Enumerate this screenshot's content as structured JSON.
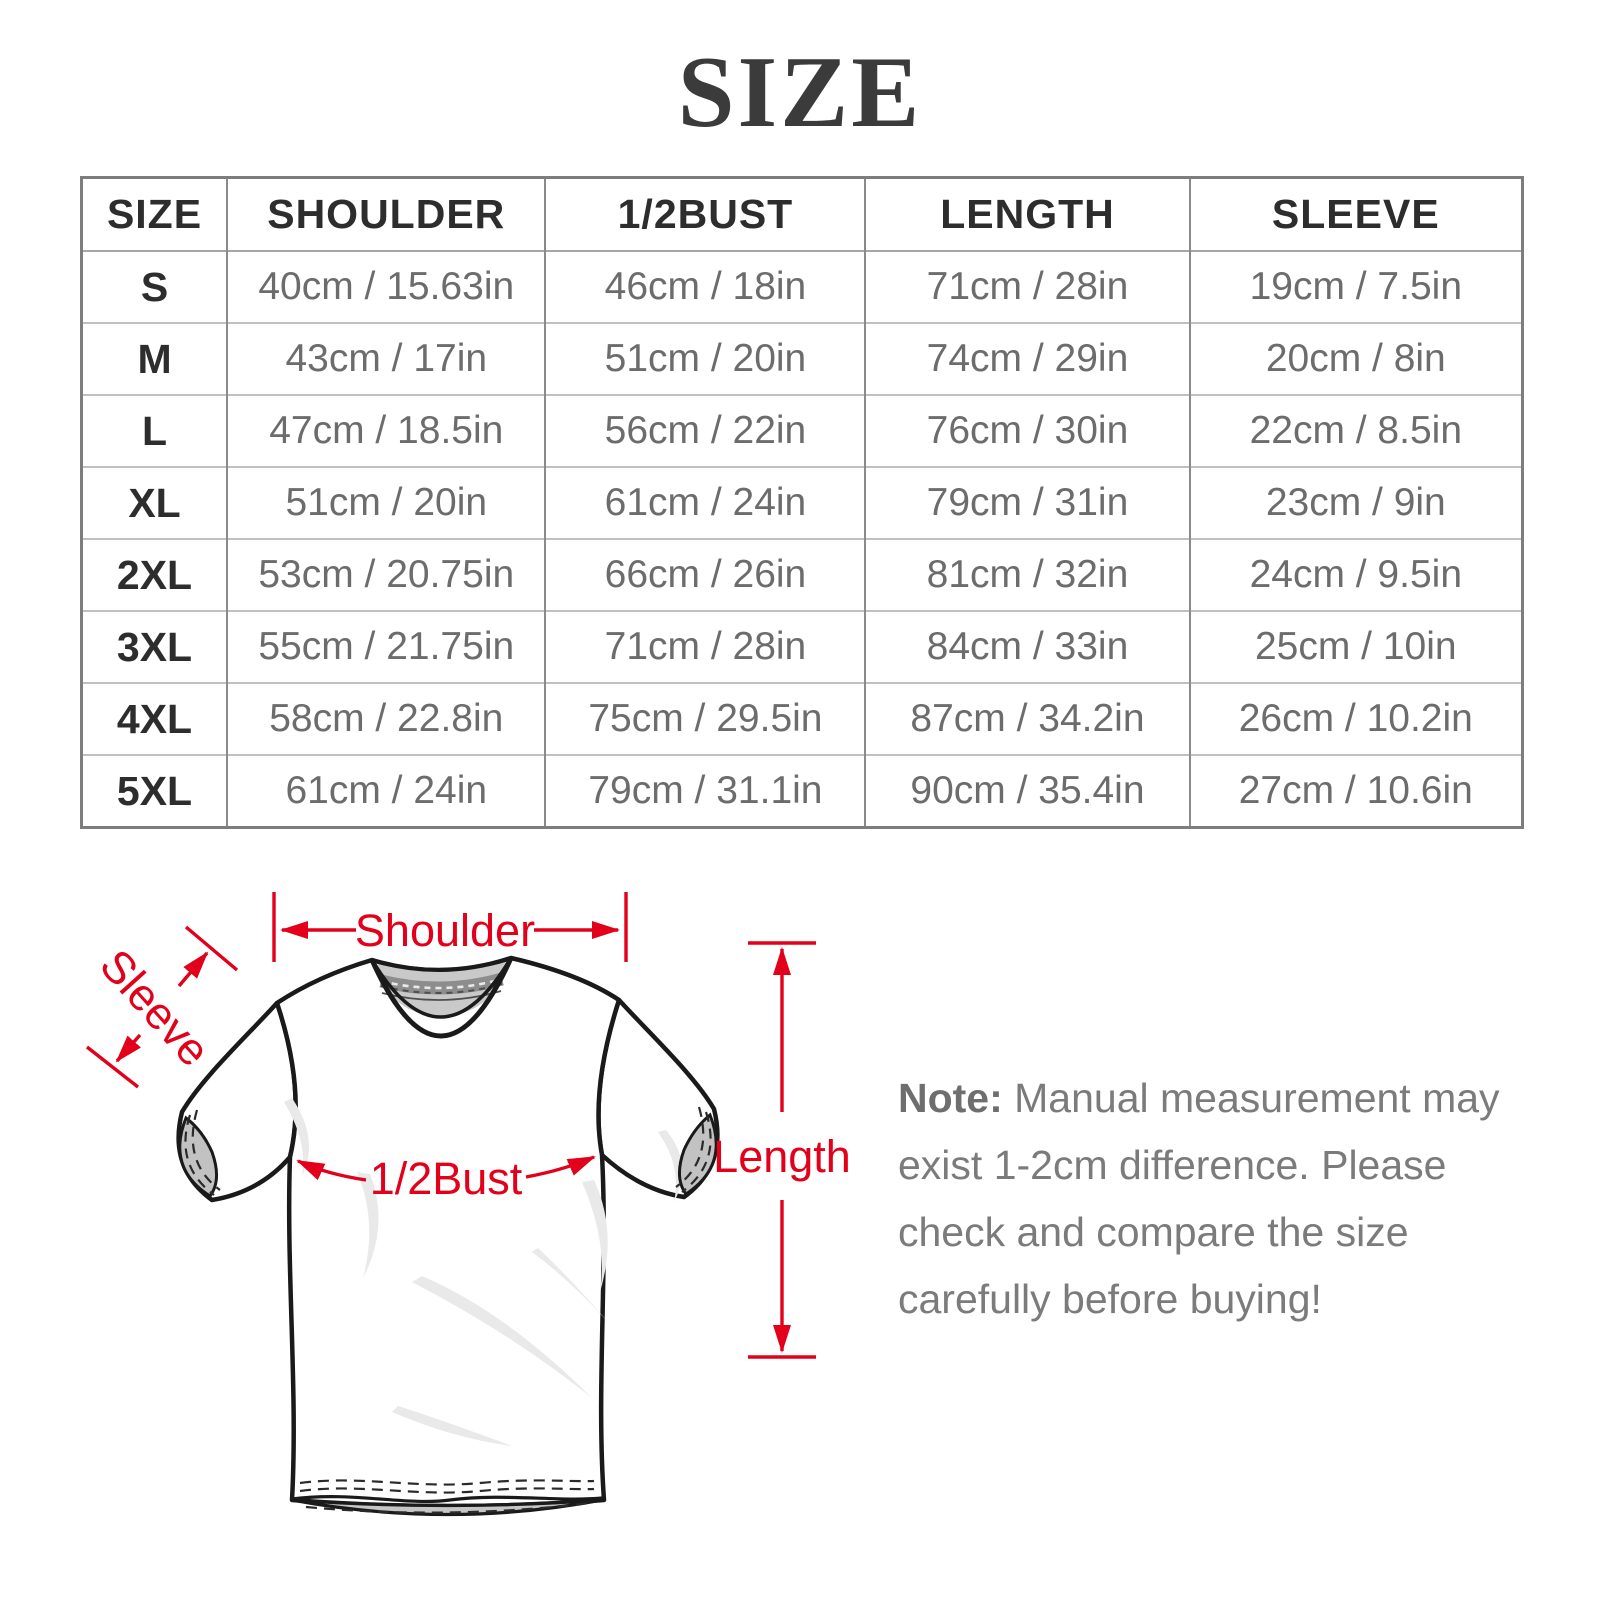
{
  "title": "SIZE",
  "table": {
    "columns": [
      "SIZE",
      "SHOULDER",
      "1/2BUST",
      "LENGTH",
      "SLEEVE"
    ],
    "rows": [
      [
        "S",
        "40cm / 15.63in",
        "46cm / 18in",
        "71cm / 28in",
        "19cm / 7.5in"
      ],
      [
        "M",
        "43cm / 17in",
        "51cm / 20in",
        "74cm / 29in",
        "20cm / 8in"
      ],
      [
        "L",
        "47cm / 18.5in",
        "56cm / 22in",
        "76cm / 30in",
        "22cm / 8.5in"
      ],
      [
        "XL",
        "51cm / 20in",
        "61cm / 24in",
        "79cm / 31in",
        "23cm / 9in"
      ],
      [
        "2XL",
        "53cm / 20.75in",
        "66cm / 26in",
        "81cm / 32in",
        "24cm / 9.5in"
      ],
      [
        "3XL",
        "55cm / 21.75in",
        "71cm / 28in",
        "84cm / 33in",
        "25cm / 10in"
      ],
      [
        "4XL",
        "58cm / 22.8in",
        "75cm / 29.5in",
        "87cm / 34.2in",
        "26cm / 10.2in"
      ],
      [
        "5XL",
        "61cm / 24in",
        "79cm / 31.1in",
        "90cm / 35.4in",
        "27cm / 10.6in"
      ]
    ]
  },
  "diagram": {
    "shoulder_label": "Shoulder",
    "sleeve_label": "Sleeve",
    "bust_label": "1/2Bust",
    "length_label": "Length",
    "accent_color": "#e2001a"
  },
  "note": {
    "prefix": "Note:",
    "body": " Manual measurement may exist 1-2cm difference. Please check and compare the size carefully before buying!"
  }
}
